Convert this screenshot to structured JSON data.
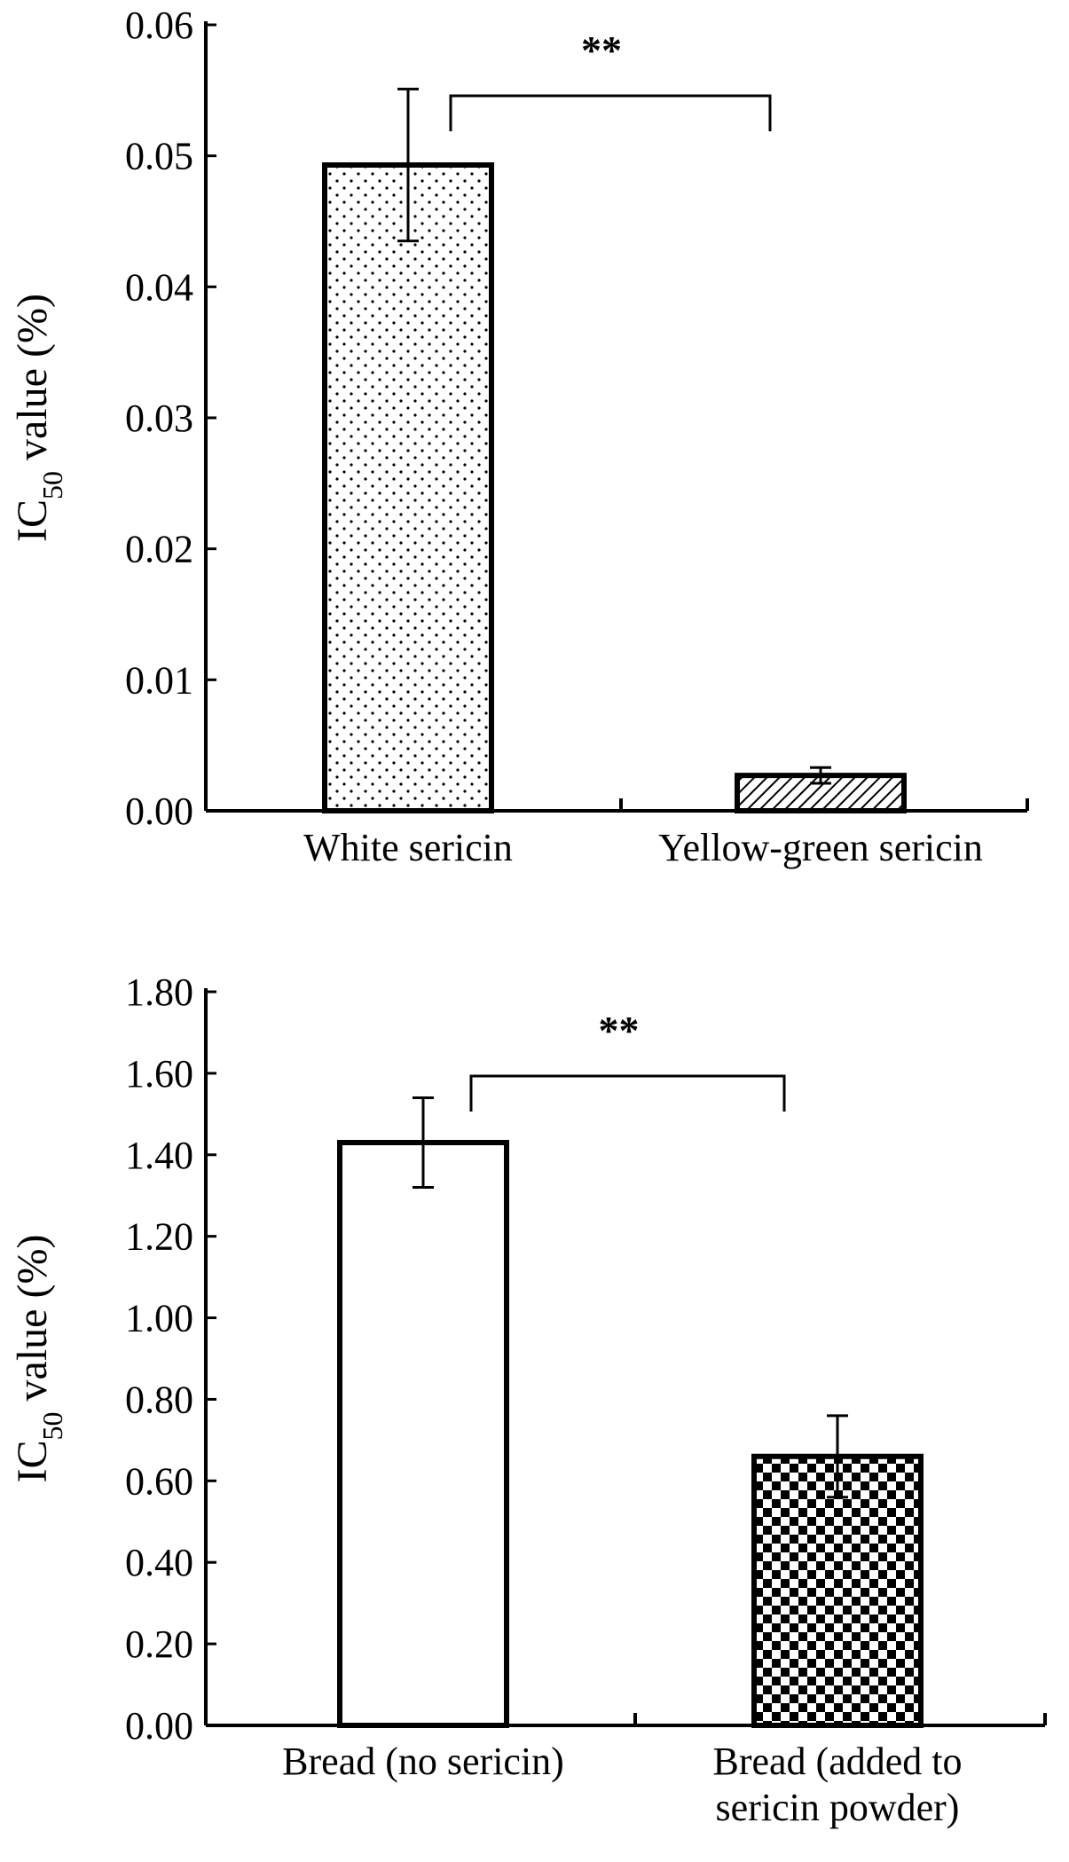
{
  "chart_data": [
    {
      "type": "bar",
      "title": "",
      "ylabel": {
        "main": "IC",
        "sub": "50",
        "rest": " value (%)"
      },
      "ylim": [
        0,
        0.06
      ],
      "yticks": [
        "0.00",
        "0.01",
        "0.02",
        "0.03",
        "0.04",
        "0.05",
        "0.06"
      ],
      "categories": [
        [
          "White sericin"
        ],
        [
          "Yellow-green sericin"
        ]
      ],
      "values": [
        0.0493,
        0.0027
      ],
      "errors": [
        0.0058,
        0.0006
      ],
      "patterns": [
        "dots",
        "hatch"
      ],
      "significance": "**"
    },
    {
      "type": "bar",
      "title": "",
      "ylabel": {
        "main": "IC",
        "sub": "50",
        "rest": " value (%)"
      },
      "ylim": [
        0,
        1.8
      ],
      "yticks": [
        "0.00",
        "0.20",
        "0.40",
        "0.60",
        "0.80",
        "1.00",
        "1.20",
        "1.40",
        "1.60",
        "1.80"
      ],
      "categories": [
        [
          "Bread (no sericin)"
        ],
        [
          "Bread  (added to",
          "sericin powder)"
        ]
      ],
      "values": [
        1.43,
        0.66
      ],
      "errors": [
        0.11,
        0.1
      ],
      "patterns": [
        "none",
        "checker"
      ],
      "significance": "**"
    }
  ]
}
